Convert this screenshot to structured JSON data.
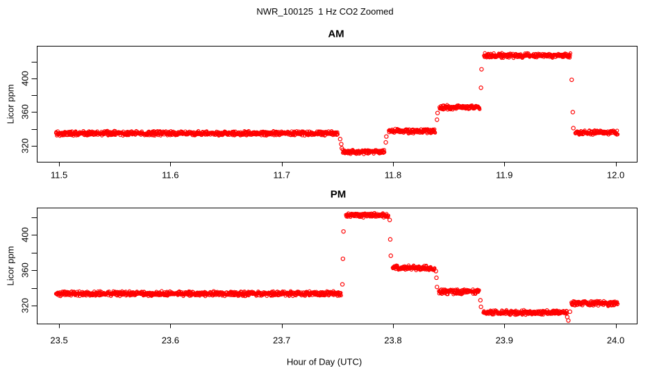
{
  "figure": {
    "title": "NWR_100125  1 Hz CO2 Zoomed",
    "xlabel": "Hour of Day (UTC)",
    "background_color": "#ffffff",
    "point_color": "#ff0000",
    "axis_color": "#000000",
    "marker": "open-circle",
    "sample_rate_hz": 1
  },
  "chart_data": [
    {
      "type": "scatter",
      "title": "AM",
      "ylabel": "Licor ppm",
      "grid": false,
      "legend": "none",
      "xlim": [
        11.48,
        12.019
      ],
      "ylim": [
        300.9,
        438.9
      ],
      "x_ticks": [
        11.5,
        11.6,
        11.7,
        11.8,
        11.9,
        12.0
      ],
      "x_tick_labels": [
        "11.5",
        "11.6",
        "11.7",
        "11.8",
        "11.9",
        "12.0"
      ],
      "y_ticks": [
        320,
        340,
        360,
        380,
        400,
        420
      ],
      "y_label_values": [
        320,
        360,
        400
      ],
      "y_label_texts": [
        "320",
        "360",
        "400"
      ],
      "segments": [
        {
          "x_start": 11.497,
          "x_end": 11.7505,
          "y_ppm": 334.8
        },
        {
          "x_start": 11.7545,
          "x_end": 11.7925,
          "y_ppm": 312.8
        },
        {
          "x_start": 11.796,
          "x_end": 11.838,
          "y_ppm": 337.5
        },
        {
          "x_start": 11.8415,
          "x_end": 11.878,
          "y_ppm": 365.8
        },
        {
          "x_start": 11.8815,
          "x_end": 11.9595,
          "y_ppm": 427.3
        },
        {
          "x_start": 11.9635,
          "x_end": 12.002,
          "y_ppm": 335.5
        }
      ],
      "transition_points": [
        [
          11.7525,
          328
        ],
        [
          11.7535,
          322
        ],
        [
          11.754,
          317
        ],
        [
          11.7935,
          324
        ],
        [
          11.794,
          331
        ],
        [
          11.8395,
          351
        ],
        [
          11.84,
          359
        ],
        [
          11.879,
          389
        ],
        [
          11.8795,
          411
        ],
        [
          11.9605,
          398.5
        ],
        [
          11.9615,
          360
        ],
        [
          11.962,
          341
        ]
      ]
    },
    {
      "type": "scatter",
      "title": "PM",
      "ylabel": "Licor ppm",
      "grid": false,
      "legend": "none",
      "xlim": [
        23.48,
        24.019
      ],
      "ylim": [
        299.5,
        431.0
      ],
      "x_ticks": [
        23.5,
        23.6,
        23.7,
        23.8,
        23.9,
        24.0
      ],
      "x_tick_labels": [
        "23.5",
        "23.6",
        "23.7",
        "23.8",
        "23.9",
        "24.0"
      ],
      "y_ticks": [
        320,
        340,
        360,
        380,
        400,
        420
      ],
      "y_label_values": [
        320,
        360,
        400
      ],
      "y_label_texts": [
        "320",
        "360",
        "400"
      ],
      "segments": [
        {
          "x_start": 23.497,
          "x_end": 23.7535,
          "y_ppm": 333.5
        },
        {
          "x_start": 23.7575,
          "x_end": 23.796,
          "y_ppm": 422.4
        },
        {
          "x_start": 23.7995,
          "x_end": 23.8375,
          "y_ppm": 362.5
        },
        {
          "x_start": 23.841,
          "x_end": 23.8775,
          "y_ppm": 335.7
        },
        {
          "x_start": 23.881,
          "x_end": 23.9565,
          "y_ppm": 312.0
        },
        {
          "x_start": 23.96,
          "x_end": 24.002,
          "y_ppm": 322.3
        }
      ],
      "transition_points": [
        [
          23.7545,
          344
        ],
        [
          23.755,
          373
        ],
        [
          23.7555,
          404
        ],
        [
          23.797,
          417
        ],
        [
          23.7975,
          395
        ],
        [
          23.798,
          376.5
        ],
        [
          23.8385,
          359
        ],
        [
          23.839,
          351.5
        ],
        [
          23.8395,
          341
        ],
        [
          23.8785,
          326
        ],
        [
          23.879,
          318.5
        ],
        [
          23.9565,
          307
        ],
        [
          23.9575,
          303
        ],
        [
          23.959,
          313
        ]
      ]
    }
  ]
}
